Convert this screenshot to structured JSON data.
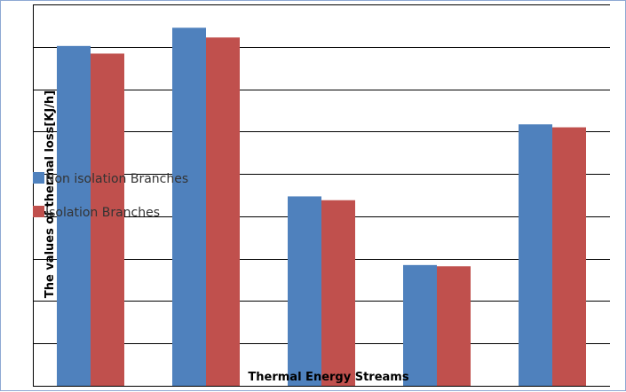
{
  "chart_data": {
    "type": "bar",
    "title": "",
    "xlabel": "Thermal Energy Streams",
    "ylabel": "The values of thermal loss[KJ/h]",
    "categories": [
      "",
      "",
      "",
      "",
      ""
    ],
    "series": [
      {
        "name": "Non isolation Branches",
        "color": "#4f81bd",
        "values": [
          8.02,
          8.45,
          4.47,
          2.85,
          6.17
        ]
      },
      {
        "name": "Isolation Branches",
        "color": "#c0504d",
        "values": [
          7.84,
          8.22,
          4.38,
          2.82,
          6.1
        ]
      }
    ],
    "ylim": [
      0,
      9
    ],
    "y_tick_step": 1,
    "show_tick_labels": false,
    "grid": true,
    "legend_position": "left"
  }
}
